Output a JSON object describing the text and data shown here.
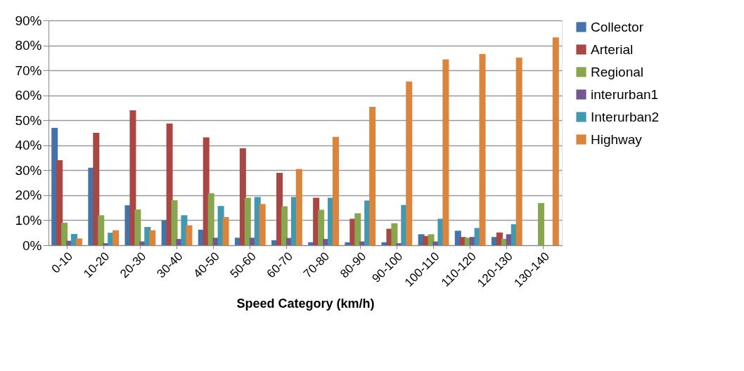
{
  "chart_data": {
    "type": "bar",
    "xlabel": "Speed Category (km/h)",
    "categories": [
      "0-10",
      "10-20",
      "20-30",
      "30-40",
      "40-50",
      "50-60",
      "60-70",
      "70-80",
      "80-90",
      "90-100",
      "100-110",
      "110-120",
      "120-130",
      "130-140"
    ],
    "series": [
      {
        "name": "Collector",
        "color": "#4572a7",
        "values": [
          47,
          31,
          16,
          10,
          6.2,
          3,
          2,
          1.2,
          1.2,
          1.2,
          4.4,
          5.8,
          3.3,
          null
        ]
      },
      {
        "name": "Arterial",
        "color": "#aa4643",
        "values": [
          34,
          45,
          54,
          48.7,
          43.2,
          38.8,
          29,
          19,
          10.6,
          6.6,
          3.7,
          3.3,
          5.1,
          null
        ]
      },
      {
        "name": "Regional",
        "color": "#89a54e",
        "values": [
          9,
          12,
          14.3,
          18,
          20.8,
          19,
          15.6,
          14.2,
          12.8,
          8.8,
          4.4,
          3,
          2.6,
          16.9
        ]
      },
      {
        "name": "interurban1",
        "color": "#71588f",
        "values": [
          1.8,
          0.8,
          1.5,
          2.5,
          3,
          3,
          2.9,
          2.5,
          1.5,
          0.8,
          1.5,
          3.3,
          4.4,
          null
        ]
      },
      {
        "name": "Interurban2",
        "color": "#4198af",
        "values": [
          4.5,
          5,
          7.3,
          12,
          15.7,
          19.3,
          19.3,
          19,
          17.9,
          16.1,
          10.6,
          6.9,
          8.4,
          null
        ]
      },
      {
        "name": "Highway",
        "color": "#db843d",
        "values": [
          2.7,
          6,
          6,
          8,
          11.3,
          16.5,
          30.5,
          43.4,
          55.4,
          65.5,
          74.4,
          76.6,
          75.1,
          83.2
        ]
      }
    ],
    "ylim": [
      0,
      90
    ],
    "yticks": [
      {
        "value": 0,
        "label": "0%"
      },
      {
        "value": 10,
        "label": "10%"
      },
      {
        "value": 20,
        "label": "20%"
      },
      {
        "value": 30,
        "label": "30%"
      },
      {
        "value": 40,
        "label": "40%"
      },
      {
        "value": 50,
        "label": "50%"
      },
      {
        "value": 60,
        "label": "60%"
      },
      {
        "value": 70,
        "label": "70%"
      },
      {
        "value": 80,
        "label": "80%"
      },
      {
        "value": 90,
        "label": "90%"
      }
    ],
    "grid": "y",
    "legend": "right"
  }
}
